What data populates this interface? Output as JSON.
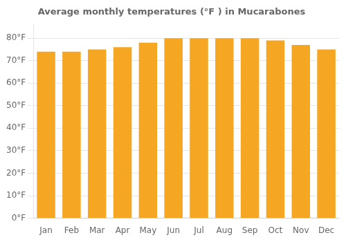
{
  "chart_data": {
    "type": "bar",
    "title": "Average monthly temperatures (°F ) in Mucarabones",
    "categories": [
      "Jan",
      "Feb",
      "Mar",
      "Apr",
      "May",
      "Jun",
      "Jul",
      "Aug",
      "Sep",
      "Oct",
      "Nov",
      "Dec"
    ],
    "values": [
      74,
      74,
      75,
      76,
      78,
      80,
      80,
      80,
      80,
      79,
      77,
      75
    ],
    "color": "#F5A623",
    "ylim": [
      0,
      86
    ],
    "yticks": [
      {
        "value": 0,
        "label": "0°F"
      },
      {
        "value": 10,
        "label": "10°F"
      },
      {
        "value": 20,
        "label": "20°F"
      },
      {
        "value": 30,
        "label": "30°F"
      },
      {
        "value": 40,
        "label": "40°F"
      },
      {
        "value": 50,
        "label": "50°F"
      },
      {
        "value": 60,
        "label": "60°F"
      },
      {
        "value": 70,
        "label": "70°F"
      },
      {
        "value": 80,
        "label": "80°F"
      }
    ],
    "grid": true
  }
}
